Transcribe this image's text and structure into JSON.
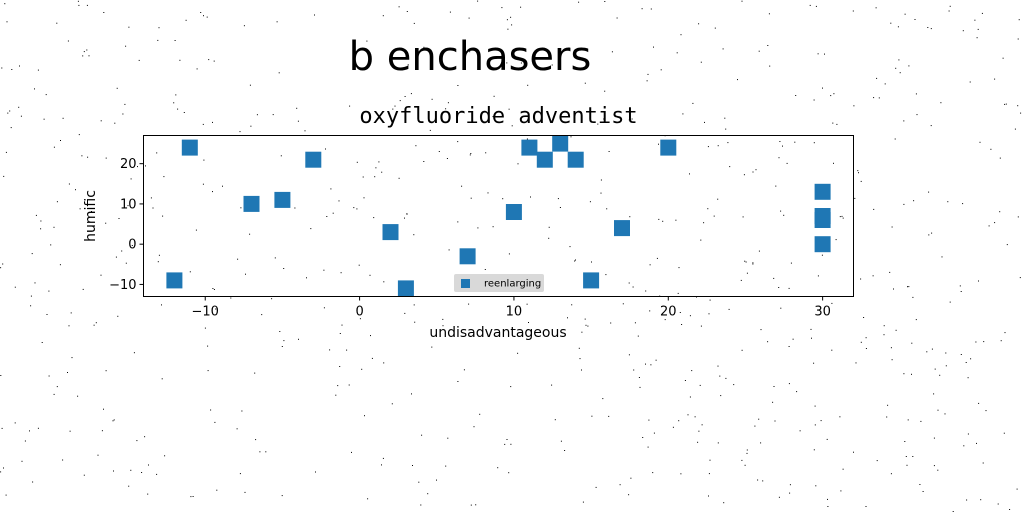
{
  "figure": {
    "suptitle": "b enchasers"
  },
  "chart_data": {
    "type": "scatter",
    "title": "oxyfluoride adventist",
    "xlabel": "undisadvantageous",
    "ylabel": "humific",
    "xlim": [
      -14,
      32
    ],
    "ylim": [
      -13,
      27
    ],
    "xticks": [
      -10,
      0,
      10,
      20,
      30
    ],
    "yticks": [
      -10,
      0,
      10,
      20
    ],
    "xtick_labels": [
      "−10",
      "0",
      "10",
      "20",
      "30"
    ],
    "ytick_labels": [
      "−10",
      "0",
      "10",
      "20"
    ],
    "grid": false,
    "legend_position": "lower-center",
    "color": "#1f77b4",
    "marker": "square",
    "series": [
      {
        "name": "reenlarging",
        "x": [
          -12,
          -11,
          -7,
          -5,
          -3,
          2,
          3,
          7,
          10,
          11,
          12,
          13,
          14,
          15,
          17,
          20,
          30,
          30,
          30,
          30
        ],
        "y": [
          -9,
          24,
          10,
          11,
          21,
          3,
          -11,
          -3,
          8,
          24,
          21,
          25,
          21,
          -9,
          4,
          24,
          13,
          7,
          6,
          0
        ]
      }
    ]
  }
}
